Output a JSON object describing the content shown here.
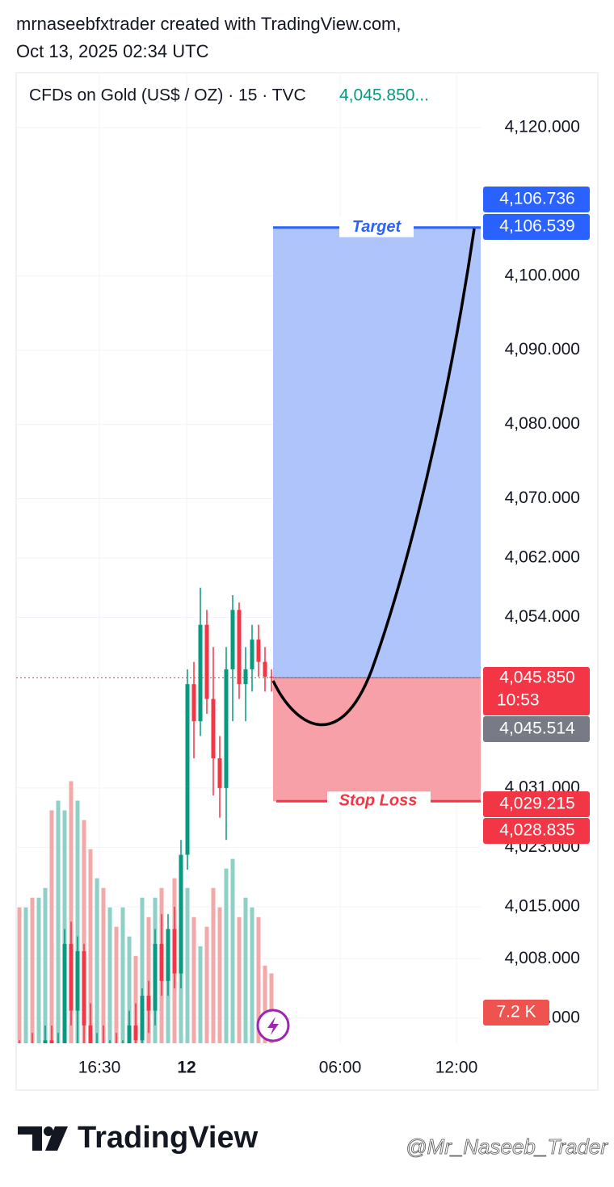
{
  "header": {
    "line1": "mrnaseebfxtrader created with TradingView.com,",
    "line2": "Oct 13, 2025 02:34 UTC"
  },
  "chart_data": {
    "type": "candlestick",
    "title": "CFDs on Gold (US$ / OZ) · 15 · TVC",
    "last_price_label": "4,045.850...",
    "up_color": "#089981",
    "down_color": "#f23645",
    "up_volume_color": "#8fd0c6",
    "down_volume_color": "#f3a9a9",
    "ylim": [
      3996.6,
      4127.4
    ],
    "yticks": [
      {
        "value": 4120,
        "label": "4,120.000"
      },
      {
        "value": 4100,
        "label": "4,100.000"
      },
      {
        "value": 4090,
        "label": "4,090.000"
      },
      {
        "value": 4080,
        "label": "4,080.000"
      },
      {
        "value": 4070,
        "label": "4,070.000"
      },
      {
        "value": 4062,
        "label": "4,062.000"
      },
      {
        "value": 4054,
        "label": "4,054.000"
      },
      {
        "value": 4031,
        "label": "4,031.000"
      },
      {
        "value": 4023,
        "label": "4,023.000"
      },
      {
        "value": 4015,
        "label": "4,015.000"
      },
      {
        "value": 4008,
        "label": "4,008.000"
      },
      {
        "value": 4000,
        "label": "4,000.000"
      }
    ],
    "xticks": [
      "16:30",
      "12",
      "06:00",
      "12:00"
    ],
    "grid": true,
    "ohlc": [
      [
        3994,
        3997,
        3990,
        3993
      ],
      [
        3993,
        3996,
        3989,
        3995
      ],
      [
        3995,
        3998,
        3991,
        3992
      ],
      [
        3992,
        3996,
        3988,
        3994
      ],
      [
        3994,
        3999,
        3990,
        3997
      ],
      [
        3997,
        3999,
        3992,
        3993
      ],
      [
        3993,
        3998,
        3990,
        3996
      ],
      [
        3996,
        4012,
        3994,
        4010
      ],
      [
        4010,
        4013,
        3999,
        4001
      ],
      [
        4001,
        4011,
        3995,
        4009
      ],
      [
        4009,
        4010,
        3996,
        3999
      ],
      [
        3999,
        4002,
        3992,
        3995
      ],
      [
        3995,
        3998,
        3990,
        3996
      ],
      [
        3996,
        3999,
        3991,
        3993
      ],
      [
        3993,
        3997,
        3990,
        3995
      ],
      [
        3995,
        3998,
        3991,
        3992
      ],
      [
        3992,
        3997,
        3990,
        3996
      ],
      [
        3996,
        4001,
        3994,
        3999
      ],
      [
        3999,
        4002,
        3996,
        3997
      ],
      [
        3997,
        4004,
        3995,
        4003
      ],
      [
        4003,
        4005,
        3998,
        4001
      ],
      [
        4001,
        4012,
        3999,
        4010
      ],
      [
        4010,
        4014,
        4003,
        4005
      ],
      [
        4005,
        4014,
        4003,
        4012
      ],
      [
        4012,
        4015,
        4004,
        4006
      ],
      [
        4006,
        4024,
        4004,
        4022
      ],
      [
        4022,
        4047,
        4020,
        4045
      ],
      [
        4045,
        4048,
        4035,
        4040
      ],
      [
        4040,
        4058,
        4038,
        4053
      ],
      [
        4053,
        4055,
        4041,
        4043
      ],
      [
        4043,
        4050,
        4030,
        4035
      ],
      [
        4035,
        4038,
        4027,
        4031
      ],
      [
        4031,
        4050,
        4024,
        4047
      ],
      [
        4047,
        4057,
        4040,
        4055
      ],
      [
        4055,
        4056,
        4043,
        4045
      ],
      [
        4045,
        4050,
        4040,
        4047
      ],
      [
        4047,
        4053,
        4044,
        4051
      ],
      [
        4051,
        4053,
        4046,
        4048
      ],
      [
        4048,
        4050,
        4044,
        4046
      ],
      [
        4046,
        4047,
        4044,
        4045.85
      ]
    ],
    "volume": [
      14,
      14,
      15,
      15,
      16,
      24,
      25,
      24,
      27,
      25,
      23,
      20,
      17,
      16,
      14,
      12,
      14,
      11,
      9,
      15,
      13,
      15,
      16,
      11,
      17,
      19,
      16,
      13,
      10,
      12,
      16,
      14,
      18,
      19,
      13,
      15,
      14,
      13,
      8,
      7.2
    ],
    "volume_lim": [
      0,
      100
    ],
    "volume_tag": "7.2 K",
    "position": {
      "target": 4106.539,
      "entry": 4045.85,
      "stop": 4029.215,
      "target_label": "Target",
      "stop_label": "Stop Loss",
      "profit_color": "#aec4fb",
      "loss_color": "#f7a0a8"
    },
    "price_tags": [
      {
        "value": 4106.736,
        "label": "4,106.736",
        "color": "#2962ff"
      },
      {
        "value": 4106.539,
        "label": "4,106.539",
        "color": "#2962ff"
      },
      {
        "value": 4045.85,
        "label": "4,045.850",
        "color": "#f23645"
      },
      {
        "value": 4045.514,
        "label": "4,045.514",
        "color": "#787b86"
      },
      {
        "value": 4029.215,
        "label": "4,029.215",
        "color": "#f23645"
      },
      {
        "value": 4028.835,
        "label": "4,028.835",
        "color": "#f23645"
      }
    ],
    "countdown": "10:53"
  },
  "footer": {
    "logo": "TradingView",
    "watermark": "@Mr_Naseeb_Trader"
  }
}
